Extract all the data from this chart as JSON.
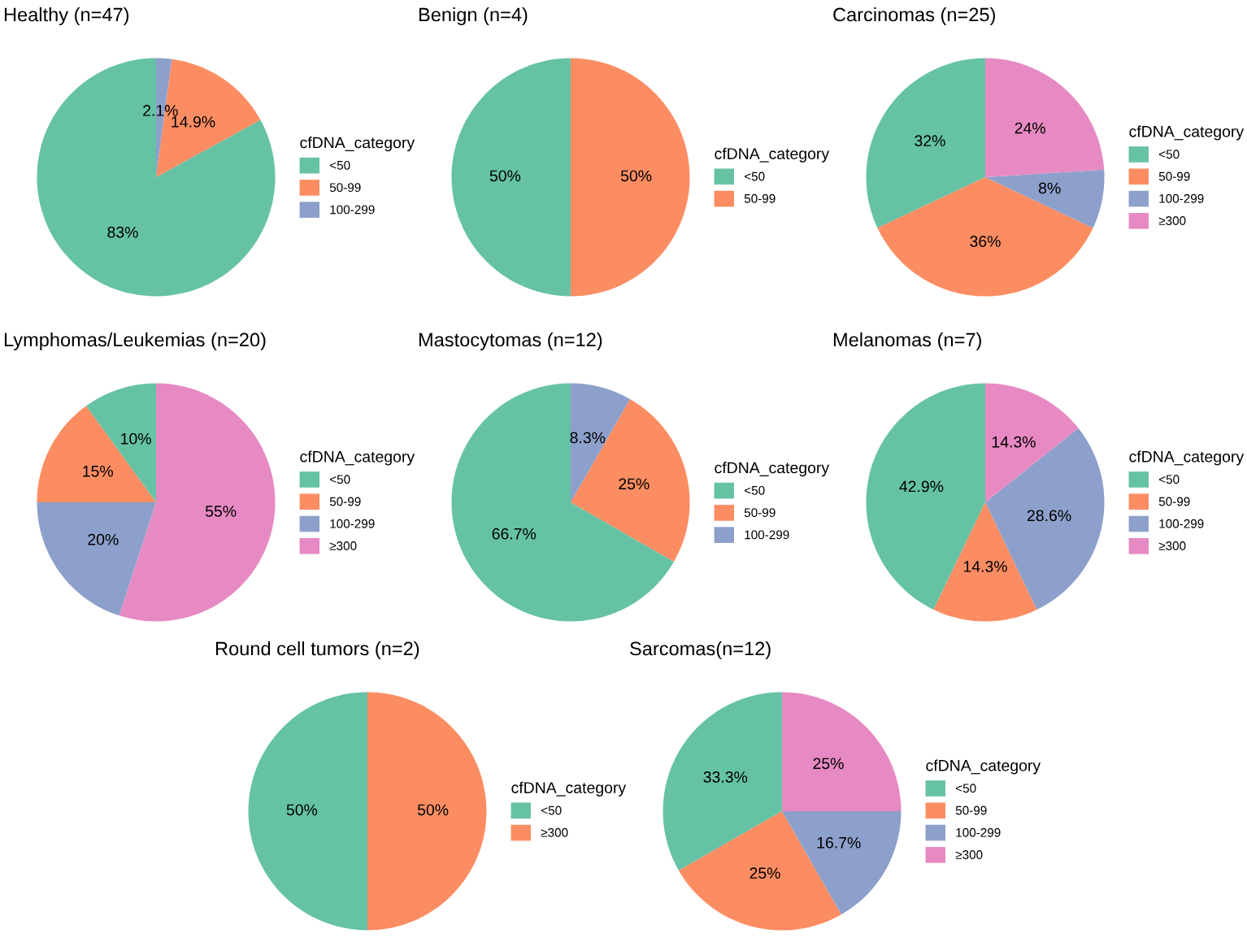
{
  "chart_data": [
    {
      "type": "pie",
      "title": "Healthy (n=47)",
      "legend_title": "cfDNA_category",
      "legend": "right",
      "categories": [
        "<50",
        "50-99",
        "100-299"
      ],
      "values": [
        83,
        14.9,
        2.1
      ],
      "value_labels": [
        "83%",
        "14.9%",
        "2.1%"
      ],
      "colors": [
        "#66c2a5",
        "#fc8d62",
        "#8da0cb"
      ]
    },
    {
      "type": "pie",
      "title": "Benign (n=4)",
      "legend_title": "cfDNA_category",
      "legend": "right",
      "categories": [
        "<50",
        "50-99"
      ],
      "values": [
        50,
        50
      ],
      "value_labels": [
        "50%",
        "50%"
      ],
      "colors": [
        "#66c2a5",
        "#fc8d62"
      ]
    },
    {
      "type": "pie",
      "title": "Carcinomas (n=25)",
      "legend_title": "cfDNA_category",
      "legend": "right",
      "categories": [
        "<50",
        "50-99",
        "100-299",
        "≥300"
      ],
      "values": [
        32,
        36,
        8,
        24
      ],
      "value_labels": [
        "32%",
        "36%",
        "8%",
        "24%"
      ],
      "colors": [
        "#66c2a5",
        "#fc8d62",
        "#8da0cb",
        "#e78ac3"
      ]
    },
    {
      "type": "pie",
      "title": "Lymphomas/Leukemias (n=20)",
      "legend_title": "cfDNA_category",
      "legend": "right",
      "categories": [
        "<50",
        "50-99",
        "100-299",
        "≥300"
      ],
      "values": [
        10,
        15,
        20,
        55
      ],
      "value_labels": [
        "10%",
        "15%",
        "20%",
        "55%"
      ],
      "colors": [
        "#66c2a5",
        "#fc8d62",
        "#8da0cb",
        "#e78ac3"
      ]
    },
    {
      "type": "pie",
      "title": "Mastocytomas (n=12)",
      "legend_title": "cfDNA_category",
      "legend": "right",
      "categories": [
        "<50",
        "50-99",
        "100-299"
      ],
      "values": [
        66.7,
        25,
        8.3
      ],
      "value_labels": [
        "66.7%",
        "25%",
        "8.3%"
      ],
      "colors": [
        "#66c2a5",
        "#fc8d62",
        "#8da0cb"
      ]
    },
    {
      "type": "pie",
      "title": "Melanomas (n=7)",
      "legend_title": "cfDNA_category",
      "legend": "right",
      "categories": [
        "<50",
        "50-99",
        "100-299",
        "≥300"
      ],
      "values": [
        42.9,
        14.3,
        28.6,
        14.3
      ],
      "value_labels": [
        "42.9%",
        "14.3%",
        "28.6%",
        "14.3%"
      ],
      "colors": [
        "#66c2a5",
        "#fc8d62",
        "#8da0cb",
        "#e78ac3"
      ]
    },
    {
      "type": "pie",
      "title": "Round cell tumors (n=2)",
      "legend_title": "cfDNA_category",
      "legend": "right",
      "categories": [
        "<50",
        "≥300"
      ],
      "values": [
        50,
        50
      ],
      "value_labels": [
        "50%",
        "50%"
      ],
      "colors": [
        "#66c2a5",
        "#fc8d62"
      ]
    },
    {
      "type": "pie",
      "title": "Sarcomas(n=12)",
      "legend_title": "cfDNA_category",
      "legend": "right",
      "categories": [
        "<50",
        "50-99",
        "100-299",
        "≥300"
      ],
      "values": [
        33.3,
        25,
        16.7,
        25
      ],
      "value_labels": [
        "33.3%",
        "25%",
        "16.7%",
        "25%"
      ],
      "colors": [
        "#66c2a5",
        "#fc8d62",
        "#8da0cb",
        "#e78ac3"
      ]
    }
  ]
}
